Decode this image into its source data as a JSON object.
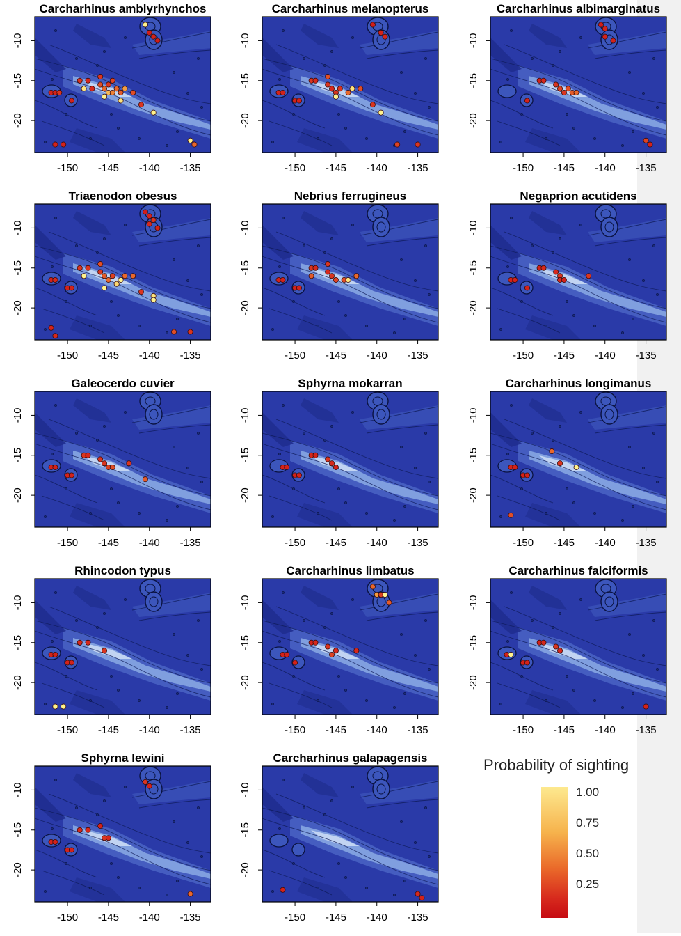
{
  "legend": {
    "title": "Probability of sighting",
    "labels": [
      "1.00",
      "0.75",
      "0.50",
      "0.25"
    ],
    "colors": [
      "#fff38a",
      "#f4a43c",
      "#e55a26",
      "#c8141a"
    ]
  },
  "chart_data": [
    {
      "type": "scatter",
      "title": "Carcharhinus amblyrhynchos",
      "x_ticks": [
        "-150",
        "-145",
        "-140",
        "-135"
      ],
      "y_ticks": [
        "-10",
        "-15",
        "-20"
      ],
      "xlim": [
        -154,
        -132.5
      ],
      "ylim": [
        -24,
        -7
      ],
      "points": [
        [
          -140.5,
          -8,
          1.0
        ],
        [
          -140,
          -9,
          0.15
        ],
        [
          -139.5,
          -9.5,
          0.2
        ],
        [
          -139,
          -10,
          0.15
        ],
        [
          -152,
          -16.5,
          0.2
        ],
        [
          -151.5,
          -16.5,
          0.2
        ],
        [
          -151,
          -16.5,
          0.3
        ],
        [
          -149.5,
          -17.5,
          0.2
        ],
        [
          -148.5,
          -15,
          0.3
        ],
        [
          -148,
          -16,
          0.95
        ],
        [
          -147.5,
          -15,
          0.25
        ],
        [
          -146,
          -14.5,
          0.3
        ],
        [
          -146,
          -15.5,
          0.4
        ],
        [
          -145.5,
          -16,
          0.5
        ],
        [
          -145,
          -15.5,
          0.3
        ],
        [
          -145,
          -16.5,
          0.8
        ],
        [
          -144.5,
          -16.5,
          0.6
        ],
        [
          -144,
          -16,
          0.5
        ],
        [
          -143.5,
          -16.5,
          0.45
        ],
        [
          -143.5,
          -17.5,
          0.95
        ],
        [
          -145.5,
          -17,
          1.0
        ],
        [
          -147,
          -16,
          0.25
        ],
        [
          -144.5,
          -15,
          0.35
        ],
        [
          -143,
          -16,
          0.7
        ],
        [
          -142,
          -16.5,
          0.4
        ],
        [
          -141,
          -18,
          0.3
        ],
        [
          -139.5,
          -19,
          1.0
        ],
        [
          -151.5,
          -23,
          0.2
        ],
        [
          -150.5,
          -23,
          0.2
        ],
        [
          -135,
          -22.5,
          1.0
        ],
        [
          -134.5,
          -23,
          0.5
        ]
      ]
    },
    {
      "type": "scatter",
      "title": "Carcharhinus melanopterus",
      "x_ticks": [
        "-150",
        "-145",
        "-140",
        "-135"
      ],
      "y_ticks": [
        "-10",
        "-15",
        "-20"
      ],
      "xlim": [
        -154,
        -132.5
      ],
      "ylim": [
        -24,
        -7
      ],
      "points": [
        [
          -140.5,
          -8,
          0.15
        ],
        [
          -139.5,
          -9,
          0.2
        ],
        [
          -139,
          -9.5,
          0.25
        ],
        [
          -152,
          -16.5,
          0.2
        ],
        [
          -151.5,
          -16.5,
          0.2
        ],
        [
          -150,
          -17.5,
          0.2
        ],
        [
          -149.5,
          -17.5,
          0.2
        ],
        [
          -148,
          -15,
          0.3
        ],
        [
          -147.5,
          -15,
          0.25
        ],
        [
          -146,
          -14.5,
          0.4
        ],
        [
          -146,
          -15.5,
          0.3
        ],
        [
          -145.5,
          -16,
          0.25
        ],
        [
          -145,
          -16.5,
          0.3
        ],
        [
          -145,
          -17,
          1.0
        ],
        [
          -144.5,
          -16,
          0.3
        ],
        [
          -143.5,
          -16.5,
          0.5
        ],
        [
          -143,
          -16,
          0.95
        ],
        [
          -142,
          -16,
          0.4
        ],
        [
          -140.5,
          -18,
          0.3
        ],
        [
          -139.5,
          -19,
          1.0
        ],
        [
          -137.5,
          -23,
          0.35
        ],
        [
          -135,
          -23,
          0.3
        ]
      ]
    },
    {
      "type": "scatter",
      "title": "Carcharhinus albimarginatus",
      "x_ticks": [
        "-150",
        "-145",
        "-140",
        "-135"
      ],
      "y_ticks": [
        "-10",
        "-15",
        "-20"
      ],
      "xlim": [
        -154,
        -132.5
      ],
      "ylim": [
        -24,
        -7
      ],
      "points": [
        [
          -140.5,
          -8,
          0.15
        ],
        [
          -140,
          -8.5,
          0.2
        ],
        [
          -140,
          -9.5,
          0.2
        ],
        [
          -139,
          -10,
          0.2
        ],
        [
          -148,
          -15,
          0.2
        ],
        [
          -147.5,
          -15,
          0.25
        ],
        [
          -146,
          -15.5,
          0.3
        ],
        [
          -145.5,
          -16,
          0.35
        ],
        [
          -145,
          -16.5,
          0.3
        ],
        [
          -144.5,
          -16,
          0.4
        ],
        [
          -144,
          -16.5,
          0.45
        ],
        [
          -143.5,
          -16.5,
          0.5
        ],
        [
          -149.5,
          -17.5,
          0.2
        ],
        [
          -135,
          -22.5,
          0.35
        ],
        [
          -134.5,
          -23,
          0.2
        ]
      ]
    },
    {
      "type": "scatter",
      "title": "Triaenodon obesus",
      "x_ticks": [
        "-150",
        "-145",
        "-140",
        "-135"
      ],
      "y_ticks": [
        "-10",
        "-15",
        "-20"
      ],
      "xlim": [
        -154,
        -132.5
      ],
      "ylim": [
        -24,
        -7
      ],
      "points": [
        [
          -140.5,
          -8,
          0.15
        ],
        [
          -140,
          -8.5,
          0.2
        ],
        [
          -139.5,
          -9,
          0.3
        ],
        [
          -140,
          -9.5,
          0.25
        ],
        [
          -139,
          -10,
          0.2
        ],
        [
          -152,
          -16.5,
          0.2
        ],
        [
          -151.5,
          -16.5,
          0.25
        ],
        [
          -150,
          -17.5,
          0.2
        ],
        [
          -149.5,
          -17.5,
          0.2
        ],
        [
          -148.5,
          -15,
          0.3
        ],
        [
          -148,
          -16,
          1.0
        ],
        [
          -147.5,
          -15,
          0.3
        ],
        [
          -146,
          -14.5,
          0.4
        ],
        [
          -146,
          -15.5,
          0.3
        ],
        [
          -145.5,
          -16,
          0.45
        ],
        [
          -145,
          -16.5,
          0.5
        ],
        [
          -144.5,
          -16,
          0.35
        ],
        [
          -144,
          -17,
          0.9
        ],
        [
          -143.5,
          -16.5,
          1.0
        ],
        [
          -143,
          -16,
          0.5
        ],
        [
          -145.5,
          -17.5,
          1.0
        ],
        [
          -142,
          -16,
          0.5
        ],
        [
          -141,
          -18,
          0.3
        ],
        [
          -139.5,
          -18.5,
          0.95
        ],
        [
          -139.5,
          -19,
          1.0
        ],
        [
          -152,
          -22.5,
          0.2
        ],
        [
          -151.5,
          -23.5,
          0.25
        ],
        [
          -137,
          -23,
          0.4
        ],
        [
          -135,
          -23,
          0.3
        ]
      ]
    },
    {
      "type": "scatter",
      "title": "Nebrius ferrugineus",
      "x_ticks": [
        "-150",
        "-145",
        "-140",
        "-135"
      ],
      "y_ticks": [
        "-10",
        "-15",
        "-20"
      ],
      "xlim": [
        -154,
        -132.5
      ],
      "ylim": [
        -24,
        -7
      ],
      "points": [
        [
          -152,
          -16.5,
          0.2
        ],
        [
          -151.5,
          -16.5,
          0.2
        ],
        [
          -150,
          -17.5,
          0.2
        ],
        [
          -149.5,
          -17.5,
          0.2
        ],
        [
          -148,
          -15,
          0.3
        ],
        [
          -147.5,
          -15,
          0.25
        ],
        [
          -146,
          -14.5,
          0.3
        ],
        [
          -146,
          -15.5,
          0.25
        ],
        [
          -145.5,
          -16,
          0.3
        ],
        [
          -145,
          -16.5,
          0.35
        ],
        [
          -144,
          -16.5,
          0.4
        ],
        [
          -143.5,
          -16.5,
          0.95
        ],
        [
          -142.5,
          -16,
          0.5
        ],
        [
          -148,
          -16,
          0.45
        ]
      ]
    },
    {
      "type": "scatter",
      "title": "Negaprion acutidens",
      "x_ticks": [
        "-150",
        "-145",
        "-140",
        "-135"
      ],
      "y_ticks": [
        "-10",
        "-15",
        "-20"
      ],
      "xlim": [
        -154,
        -132.5
      ],
      "ylim": [
        -24,
        -7
      ],
      "points": [
        [
          -151.5,
          -16.5,
          0.2
        ],
        [
          -151,
          -16.5,
          0.2
        ],
        [
          -149.5,
          -17.5,
          0.2
        ],
        [
          -148,
          -15,
          0.2
        ],
        [
          -147.5,
          -15,
          0.25
        ],
        [
          -146,
          -15.5,
          0.25
        ],
        [
          -145.5,
          -16,
          0.3
        ],
        [
          -145.5,
          -16.5,
          0.25
        ],
        [
          -145,
          -16.5,
          0.2
        ],
        [
          -142,
          -16,
          0.3
        ]
      ]
    },
    {
      "type": "scatter",
      "title": "Galeocerdo cuvier",
      "x_ticks": [
        "-150",
        "-145",
        "-140",
        "-135"
      ],
      "y_ticks": [
        "-10",
        "-15",
        "-20"
      ],
      "xlim": [
        -154,
        -132.5
      ],
      "ylim": [
        -24,
        -7
      ],
      "points": [
        [
          -152,
          -16.5,
          0.2
        ],
        [
          -151.5,
          -16.5,
          0.2
        ],
        [
          -150,
          -17.5,
          0.2
        ],
        [
          -149.5,
          -17.5,
          0.2
        ],
        [
          -148,
          -15,
          0.3
        ],
        [
          -147.5,
          -15,
          0.25
        ],
        [
          -146,
          -15.5,
          0.3
        ],
        [
          -145.5,
          -16,
          0.3
        ],
        [
          -145,
          -16.5,
          0.35
        ],
        [
          -144.5,
          -16.5,
          0.4
        ],
        [
          -142.5,
          -16,
          0.3
        ],
        [
          -140.5,
          -18,
          0.45
        ]
      ]
    },
    {
      "type": "scatter",
      "title": "Sphyrna mokarran",
      "x_ticks": [
        "-150",
        "-145",
        "-140",
        "-135"
      ],
      "y_ticks": [
        "-10",
        "-15",
        "-20"
      ],
      "xlim": [
        -154,
        -132.5
      ],
      "ylim": [
        -24,
        -7
      ],
      "points": [
        [
          -151.5,
          -16.5,
          0.2
        ],
        [
          -151,
          -16.5,
          0.2
        ],
        [
          -150,
          -17.5,
          0.2
        ],
        [
          -149.5,
          -17.5,
          0.2
        ],
        [
          -148,
          -15,
          0.25
        ],
        [
          -147.5,
          -15,
          0.2
        ],
        [
          -146,
          -15.5,
          0.3
        ],
        [
          -145.5,
          -16,
          0.25
        ],
        [
          -145,
          -16.5,
          0.2
        ]
      ]
    },
    {
      "type": "scatter",
      "title": "Carcharhinus longimanus",
      "x_ticks": [
        "-150",
        "-145",
        "-140",
        "-135"
      ],
      "y_ticks": [
        "-10",
        "-15",
        "-20"
      ],
      "xlim": [
        -154,
        -132.5
      ],
      "ylim": [
        -24,
        -7
      ],
      "points": [
        [
          -151.5,
          -16.5,
          0.2
        ],
        [
          -151,
          -16.5,
          0.2
        ],
        [
          -150,
          -17.5,
          0.2
        ],
        [
          -149.5,
          -17.5,
          0.2
        ],
        [
          -146.5,
          -14.5,
          0.5
        ],
        [
          -145.5,
          -16,
          0.3
        ],
        [
          -143.5,
          -16.5,
          1.0
        ],
        [
          -151.5,
          -22.5,
          0.4
        ]
      ]
    },
    {
      "type": "scatter",
      "title": "Rhincodon typus",
      "x_ticks": [
        "-150",
        "-145",
        "-140",
        "-135"
      ],
      "y_ticks": [
        "-10",
        "-15",
        "-20"
      ],
      "xlim": [
        -154,
        -132.5
      ],
      "ylim": [
        -24,
        -7
      ],
      "points": [
        [
          -152,
          -16.5,
          0.2
        ],
        [
          -151.5,
          -16.5,
          0.2
        ],
        [
          -150,
          -17.5,
          0.2
        ],
        [
          -149.5,
          -17.5,
          0.2
        ],
        [
          -148.5,
          -15,
          0.25
        ],
        [
          -147.5,
          -15,
          0.25
        ],
        [
          -145.5,
          -16,
          0.3
        ],
        [
          -151.5,
          -23,
          1.0
        ],
        [
          -150.5,
          -23,
          1.0
        ]
      ]
    },
    {
      "type": "scatter",
      "title": "Carcharhinus limbatus",
      "x_ticks": [
        "-150",
        "-145",
        "-140",
        "-135"
      ],
      "y_ticks": [
        "-10",
        "-15",
        "-20"
      ],
      "xlim": [
        -154,
        -132.5
      ],
      "ylim": [
        -24,
        -7
      ],
      "points": [
        [
          -140.5,
          -8,
          0.5
        ],
        [
          -140,
          -9,
          0.7
        ],
        [
          -139.5,
          -9,
          0.35
        ],
        [
          -139,
          -9,
          1.0
        ],
        [
          -138.5,
          -10,
          0.45
        ],
        [
          -151.5,
          -16.5,
          0.2
        ],
        [
          -151,
          -16.5,
          0.2
        ],
        [
          -150,
          -17.5,
          0.2
        ],
        [
          -148,
          -15,
          0.2
        ],
        [
          -147.5,
          -15,
          0.25
        ],
        [
          -146,
          -15.5,
          0.3
        ],
        [
          -145.5,
          -16.5,
          0.35
        ],
        [
          -145,
          -16,
          0.25
        ],
        [
          -142.5,
          -16,
          0.25
        ]
      ]
    },
    {
      "type": "scatter",
      "title": "Carcharhinus falciformis",
      "x_ticks": [
        "-150",
        "-145",
        "-140",
        "-135"
      ],
      "y_ticks": [
        "-10",
        "-15",
        "-20"
      ],
      "xlim": [
        -154,
        -132.5
      ],
      "ylim": [
        -24,
        -7
      ],
      "points": [
        [
          -152,
          -16.5,
          0.2
        ],
        [
          -151.5,
          -16.5,
          1.0
        ],
        [
          -150,
          -17.5,
          0.2
        ],
        [
          -149.5,
          -17.5,
          0.2
        ],
        [
          -148,
          -15,
          0.2
        ],
        [
          -147.5,
          -15,
          0.25
        ],
        [
          -146,
          -15.5,
          0.3
        ],
        [
          -145.5,
          -16,
          0.25
        ],
        [
          -135,
          -23,
          0.2
        ]
      ]
    },
    {
      "type": "scatter",
      "title": "Sphyrna lewini",
      "x_ticks": [
        "-150",
        "-145",
        "-140",
        "-135"
      ],
      "y_ticks": [
        "-10",
        "-15",
        "-20"
      ],
      "xlim": [
        -154,
        -132.5
      ],
      "ylim": [
        -24,
        -7
      ],
      "points": [
        [
          -140.5,
          -9,
          0.3
        ],
        [
          -140,
          -9.5,
          0.2
        ],
        [
          -152,
          -16.5,
          0.2
        ],
        [
          -151.5,
          -16.5,
          0.2
        ],
        [
          -150,
          -17.5,
          0.2
        ],
        [
          -149.5,
          -17.5,
          0.2
        ],
        [
          -148.5,
          -15,
          0.25
        ],
        [
          -147.5,
          -15,
          0.25
        ],
        [
          -146,
          -14.5,
          0.2
        ],
        [
          -145.5,
          -16,
          0.3
        ],
        [
          -145,
          -16,
          0.25
        ],
        [
          -135,
          -23,
          0.5
        ]
      ]
    },
    {
      "type": "scatter",
      "title": "Carcharhinus galapagensis",
      "x_ticks": [
        "-150",
        "-145",
        "-140",
        "-135"
      ],
      "y_ticks": [
        "-10",
        "-15",
        "-20"
      ],
      "xlim": [
        -154,
        -132.5
      ],
      "ylim": [
        -24,
        -7
      ],
      "points": [
        [
          -151.5,
          -22.5,
          0.2
        ],
        [
          -135,
          -23,
          0.25
        ],
        [
          -134.5,
          -23.5,
          0.2
        ]
      ]
    }
  ]
}
